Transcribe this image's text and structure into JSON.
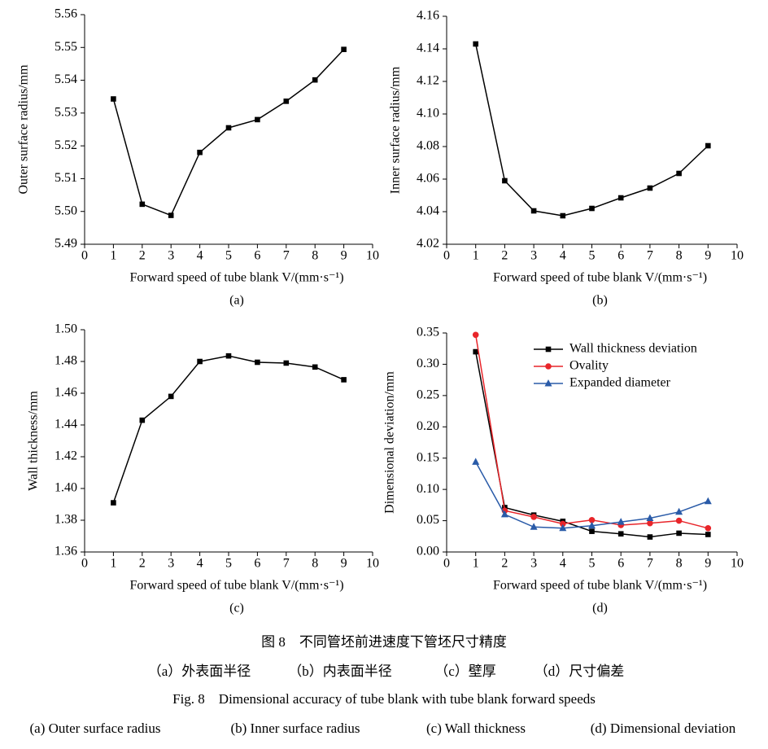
{
  "chart_data": [
    {
      "type": "line",
      "sublabel": "(a)",
      "xlabel": "Forward speed of tube blank V/(mm·s⁻¹)",
      "ylabel": "Outer surface radius/mm",
      "x": [
        1,
        2,
        3,
        4,
        5,
        6,
        7,
        8,
        9
      ],
      "values": [
        5.5343,
        5.5022,
        5.4988,
        5.518,
        5.5255,
        5.528,
        5.5336,
        5.5401,
        5.5494
      ],
      "color": "#000000",
      "marker": "square",
      "xlim": [
        0,
        10
      ],
      "xticks": [
        0,
        1,
        2,
        3,
        4,
        5,
        6,
        7,
        8,
        9,
        10
      ],
      "ylim": [
        5.49,
        5.56
      ],
      "yticks": [
        5.49,
        {
          "value": 5.5,
          "label": "5.50"
        },
        5.51,
        5.52,
        5.53,
        5.54,
        5.55,
        5.56
      ]
    },
    {
      "type": "line",
      "sublabel": "(b)",
      "xlabel": "Forward speed of tube blank V/(mm·s⁻¹)",
      "ylabel": "Inner surface radius/mm",
      "x": [
        1,
        2,
        3,
        4,
        5,
        6,
        7,
        8,
        9
      ],
      "values": [
        4.143,
        4.059,
        4.0405,
        4.0375,
        4.042,
        4.0485,
        4.0545,
        4.0635,
        4.0805
      ],
      "color": "#000000",
      "marker": "square",
      "xlim": [
        0,
        10
      ],
      "xticks": [
        0,
        1,
        2,
        3,
        4,
        5,
        6,
        7,
        8,
        9,
        10
      ],
      "ylim": [
        4.02,
        4.16
      ],
      "yticks": [
        4.02,
        4.04,
        4.06,
        4.08,
        {
          "value": 4.1,
          "label": "4.10"
        },
        4.12,
        4.14,
        4.16
      ]
    },
    {
      "type": "line",
      "sublabel": "(c)",
      "xlabel": "Forward speed of tube blank V/(mm·s⁻¹)",
      "ylabel": "Wall thickness/mm",
      "x": [
        1,
        2,
        3,
        4,
        5,
        6,
        7,
        8,
        9
      ],
      "values": [
        1.391,
        1.443,
        1.458,
        1.48,
        1.4835,
        1.4795,
        1.479,
        1.4765,
        1.4685
      ],
      "color": "#000000",
      "marker": "square",
      "xlim": [
        0,
        10
      ],
      "xticks": [
        0,
        1,
        2,
        3,
        4,
        5,
        6,
        7,
        8,
        9,
        10
      ],
      "ylim": [
        1.36,
        1.5
      ],
      "yticks": [
        1.36,
        1.38,
        {
          "value": 1.4,
          "label": "1.40"
        },
        1.42,
        1.44,
        1.46,
        1.48,
        {
          "value": 1.5,
          "label": "1.50"
        }
      ]
    },
    {
      "type": "line",
      "sublabel": "(d)",
      "xlabel": "Forward speed of tube blank V/(mm·s⁻¹)",
      "ylabel": "Dimensional deviation/mm",
      "x": [
        1,
        2,
        3,
        4,
        5,
        6,
        7,
        8,
        9
      ],
      "legend": "upper right",
      "series": [
        {
          "name": "Wall thickness deviation",
          "color": "#000000",
          "marker": "square",
          "values": [
            0.32,
            0.071,
            0.059,
            0.049,
            0.033,
            0.029,
            0.024,
            0.03,
            0.028
          ]
        },
        {
          "name": "Ovality",
          "color": "#e8252a",
          "marker": "circle",
          "values": [
            0.347,
            0.066,
            0.056,
            0.045,
            0.051,
            0.043,
            0.046,
            0.05,
            0.038
          ]
        },
        {
          "name": "Expanded diameter",
          "color": "#2a5ba8",
          "marker": "triangle",
          "values": [
            0.144,
            0.06,
            0.04,
            0.038,
            0.042,
            0.048,
            0.054,
            0.064,
            0.081
          ]
        }
      ],
      "xlim": [
        0,
        10
      ],
      "xticks": [
        0,
        1,
        2,
        3,
        4,
        5,
        6,
        7,
        8,
        9,
        10
      ],
      "ylim": [
        0,
        0.35
      ],
      "yticks": [
        {
          "value": 0,
          "label": "0.00"
        },
        0.05,
        {
          "value": 0.1,
          "label": "0.10"
        },
        0.15,
        {
          "value": 0.2,
          "label": "0.20"
        },
        0.25,
        {
          "value": 0.3,
          "label": "0.30"
        },
        0.35
      ]
    }
  ],
  "caption": {
    "cn_title": "图 8　不同管坯前进速度下管坯尺寸精度",
    "cn_parts": [
      "（a）外表面半径",
      "（b）内表面半径",
      "（c）壁厚",
      "（d）尺寸偏差"
    ],
    "en_title": "Fig. 8　Dimensional accuracy of tube blank with tube blank forward speeds",
    "en_parts": [
      "(a)  Outer surface radius",
      "(b)  Inner surface radius",
      "(c)  Wall thickness",
      "(d)  Dimensional deviation"
    ]
  }
}
